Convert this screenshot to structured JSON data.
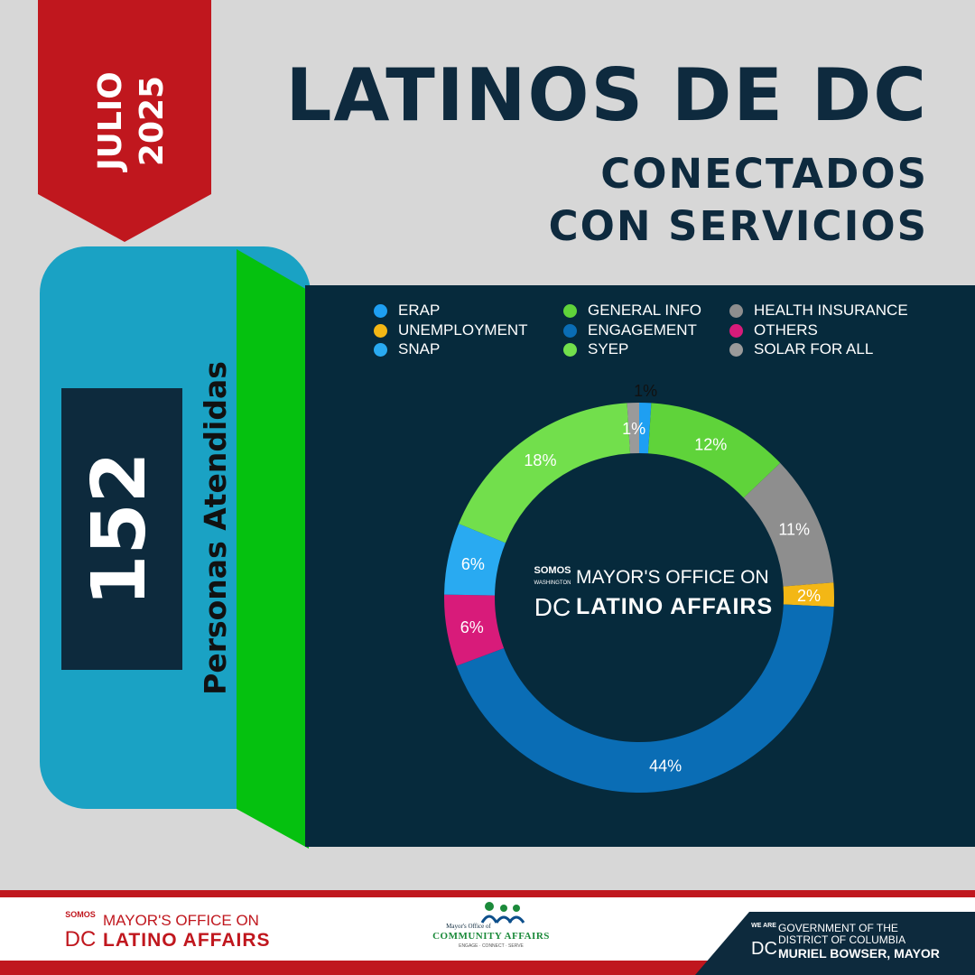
{
  "header": {
    "month": "JULIO",
    "year": "2025",
    "title": "LATINOS DE DC",
    "subtitle_line1": "CONECTADOS",
    "subtitle_line2": "CON SERVICIOS"
  },
  "stats": {
    "count": "152",
    "count_label": "Personas Atendidas"
  },
  "colors": {
    "ribbon": "#c0171e",
    "navy": "#0d2a3d",
    "panel_blue": "#1aa2c4",
    "band_green": "#05c10f"
  },
  "chart_data": {
    "type": "pie",
    "donut": true,
    "legend_position": "top",
    "legend": [
      {
        "name": "ERAP",
        "color": "#1e9ff2"
      },
      {
        "name": "GENERAL INFO",
        "color": "#5fd33a"
      },
      {
        "name": "HEALTH INSURANCE",
        "color": "#8e8e8e"
      },
      {
        "name": "UNEMPLOYMENT",
        "color": "#f3b715"
      },
      {
        "name": "ENGAGEMENT",
        "color": "#0a6db5"
      },
      {
        "name": "OTHERS",
        "color": "#d81b7a"
      },
      {
        "name": "SNAP",
        "color": "#29aaf1"
      },
      {
        "name": "SYEP",
        "color": "#72df4c"
      },
      {
        "name": "SOLAR FOR ALL",
        "color": "#9a9a9a"
      }
    ],
    "slices": [
      {
        "name": "ERAP",
        "value": 1,
        "label": "1%",
        "color": "#1e9ff2"
      },
      {
        "name": "GENERAL INFO",
        "value": 12,
        "label": "12%",
        "color": "#5fd33a"
      },
      {
        "name": "HEALTH INSURANCE",
        "value": 11,
        "label": "11%",
        "color": "#8e8e8e"
      },
      {
        "name": "UNEMPLOYMENT",
        "value": 2,
        "label": "2%",
        "color": "#f3b715"
      },
      {
        "name": "ENGAGEMENT",
        "value": 44,
        "label": "44%",
        "color": "#0a6db5"
      },
      {
        "name": "OTHERS",
        "value": 6,
        "label": "6%",
        "color": "#d81b7a"
      },
      {
        "name": "SNAP",
        "value": 6,
        "label": "6%",
        "color": "#29aaf1"
      },
      {
        "name": "SYEP",
        "value": 18,
        "label": "18%",
        "color": "#72df4c"
      },
      {
        "name": "SOLAR FOR ALL",
        "value": 1,
        "label": "1%",
        "color": "#9a9a9a"
      }
    ]
  },
  "center_logo": {
    "small": "SOMOS",
    "small2": "WASHINGTON",
    "mark": "DC",
    "line1": "MAYOR'S OFFICE ON",
    "line2": "LATINO AFFAIRS"
  },
  "footer": {
    "molo": {
      "small": "SOMOS",
      "mark": "DC",
      "line1": "MAYOR'S OFFICE ON",
      "line2": "LATINO AFFAIRS"
    },
    "moca": {
      "line1": "Mayor's Office of",
      "line2": "COMMUNITY AFFAIRS",
      "line3": "ENGAGE · CONNECT · SERVE"
    },
    "gov": {
      "small": "WE ARE",
      "mark": "DC",
      "line1": "GOVERNMENT OF THE",
      "line2": "DISTRICT OF COLUMBIA",
      "line3": "MURIEL BOWSER, MAYOR"
    }
  }
}
